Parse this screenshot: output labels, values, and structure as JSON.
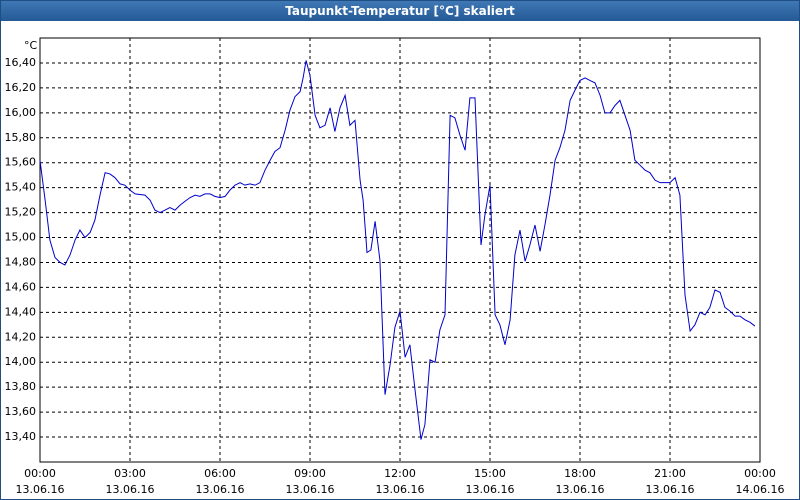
{
  "chart_data": {
    "type": "line",
    "title": "Taupunkt-Temperatur [°C] skaliert",
    "y_label": "°C",
    "x": [
      0,
      0.17,
      0.33,
      0.5,
      0.67,
      0.83,
      1,
      1.17,
      1.33,
      1.5,
      1.67,
      1.83,
      2,
      2.17,
      2.33,
      2.5,
      2.67,
      2.83,
      3,
      3.17,
      3.5,
      3.67,
      3.83,
      4,
      4.17,
      4.33,
      4.5,
      4.67,
      4.83,
      5,
      5.17,
      5.33,
      5.5,
      5.67,
      5.83,
      6,
      6.17,
      6.33,
      6.5,
      6.67,
      6.83,
      7,
      7.17,
      7.33,
      7.5,
      7.67,
      7.83,
      8,
      8.17,
      8.33,
      8.5,
      8.67,
      8.77,
      8.87,
      9,
      9.17,
      9.33,
      9.5,
      9.67,
      9.83,
      10,
      10.17,
      10.33,
      10.5,
      10.67,
      10.77,
      10.9,
      11.03,
      11.17,
      11.33,
      11.5,
      11.67,
      11.83,
      12,
      12.17,
      12.33,
      12.5,
      12.7,
      12.83,
      13,
      13.17,
      13.33,
      13.5,
      13.67,
      13.83,
      14,
      14.17,
      14.33,
      14.5,
      14.7,
      14.83,
      15,
      15.17,
      15.33,
      15.5,
      15.67,
      15.83,
      16,
      16.17,
      16.33,
      16.5,
      16.67,
      16.83,
      17,
      17.17,
      17.33,
      17.5,
      17.67,
      17.83,
      18,
      18.17,
      18.33,
      18.5,
      18.67,
      18.83,
      19,
      19.17,
      19.33,
      19.5,
      19.67,
      19.83,
      20,
      20.17,
      20.33,
      20.5,
      20.67,
      20.83,
      21,
      21.17,
      21.33,
      21.5,
      21.67,
      21.83,
      22,
      22.17,
      22.33,
      22.5,
      22.67,
      22.83,
      23,
      23.17,
      23.33,
      23.5,
      23.67,
      23.83
    ],
    "series": [
      {
        "name": "Taupunkt",
        "color": "#0000cc",
        "values": [
          15.62,
          15.3,
          14.98,
          14.84,
          14.8,
          14.78,
          14.86,
          14.98,
          15.06,
          15,
          15.04,
          15.14,
          15.34,
          15.52,
          15.51,
          15.48,
          15.43,
          15.42,
          15.38,
          15.35,
          15.34,
          15.3,
          15.22,
          15.2,
          15.22,
          15.24,
          15.22,
          15.26,
          15.29,
          15.32,
          15.34,
          15.33,
          15.35,
          15.35,
          15.33,
          15.32,
          15.33,
          15.38,
          15.42,
          15.44,
          15.42,
          15.43,
          15.42,
          15.44,
          15.54,
          15.62,
          15.69,
          15.72,
          15.86,
          16.02,
          16.13,
          16.17,
          16.28,
          16.42,
          16.3,
          15.98,
          15.88,
          15.9,
          16.04,
          15.85,
          16.04,
          16.14,
          15.9,
          15.94,
          15.46,
          15.3,
          14.88,
          14.9,
          15.13,
          14.82,
          13.74,
          13.98,
          14.28,
          14.41,
          14.04,
          14.14,
          13.78,
          13.38,
          13.5,
          14.02,
          14,
          14.26,
          14.38,
          15.98,
          15.96,
          15.82,
          15.7,
          16.12,
          16.12,
          14.94,
          15.18,
          15.42,
          14.38,
          14.3,
          14.14,
          14.34,
          14.86,
          15.06,
          14.81,
          14.94,
          15.1,
          14.89,
          15.1,
          15.34,
          15.62,
          15.72,
          15.86,
          16.1,
          16.18,
          16.26,
          16.28,
          16.26,
          16.24,
          16.14,
          16,
          16,
          16.06,
          16.1,
          15.98,
          15.86,
          15.62,
          15.58,
          15.54,
          15.52,
          15.46,
          15.44,
          15.44,
          15.44,
          15.48,
          15.34,
          14.54,
          14.25,
          14.3,
          14.4,
          14.38,
          14.44,
          14.58,
          14.56,
          14.44,
          14.41,
          14.37,
          14.37,
          14.34,
          14.32,
          14.29
        ]
      }
    ],
    "xlim": [
      0,
      24
    ],
    "xticks": [
      {
        "value": 0,
        "label": "00:00",
        "date": "13.06.16"
      },
      {
        "value": 3,
        "label": "03:00",
        "date": "13.06.16"
      },
      {
        "value": 6,
        "label": "06:00",
        "date": "13.06.16"
      },
      {
        "value": 9,
        "label": "09:00",
        "date": "13.06.16"
      },
      {
        "value": 12,
        "label": "12:00",
        "date": "13.06.16"
      },
      {
        "value": 15,
        "label": "15:00",
        "date": "13.06.16"
      },
      {
        "value": 18,
        "label": "18:00",
        "date": "13.06.16"
      },
      {
        "value": 21,
        "label": "21:00",
        "date": "13.06.16"
      },
      {
        "value": 24,
        "label": "00:00",
        "date": "14.06.16"
      }
    ],
    "ylim": [
      13.2,
      16.6
    ],
    "yticks": [
      {
        "value": 13.4,
        "label": "13,40"
      },
      {
        "value": 13.6,
        "label": "13,60"
      },
      {
        "value": 13.8,
        "label": "13,80"
      },
      {
        "value": 14,
        "label": "14,00"
      },
      {
        "value": 14.2,
        "label": "14,20"
      },
      {
        "value": 14.4,
        "label": "14,40"
      },
      {
        "value": 14.6,
        "label": "14,60"
      },
      {
        "value": 14.8,
        "label": "14,80"
      },
      {
        "value": 15,
        "label": "15,00"
      },
      {
        "value": 15.2,
        "label": "15,20"
      },
      {
        "value": 15.4,
        "label": "15,40"
      },
      {
        "value": 15.6,
        "label": "15,60"
      },
      {
        "value": 15.8,
        "label": "15,80"
      },
      {
        "value": 16,
        "label": "16,00"
      },
      {
        "value": 16.2,
        "label": "16,20"
      },
      {
        "value": 16.4,
        "label": "16,40"
      }
    ],
    "grid": true
  }
}
